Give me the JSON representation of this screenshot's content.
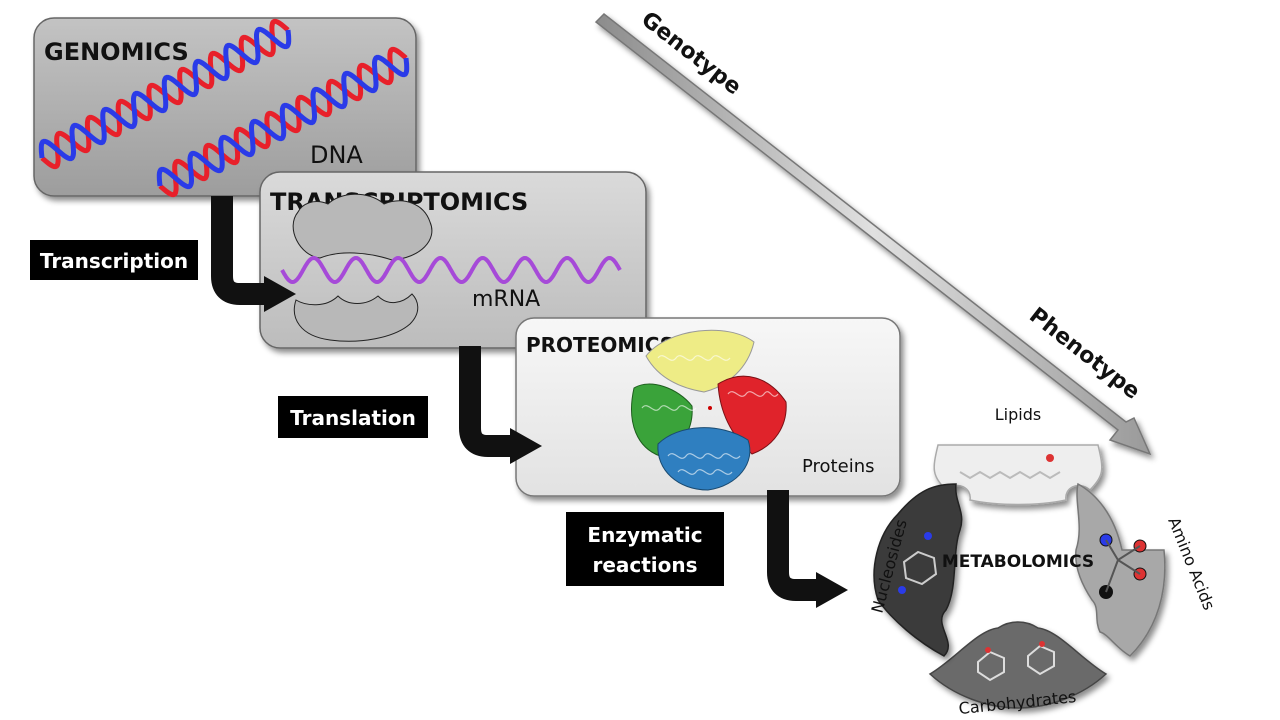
{
  "stages": {
    "genomics": {
      "title": "GENOMICS",
      "label": "DNA"
    },
    "transcriptomics": {
      "title": "TRANSCRIPTOMICS",
      "label": "mRNA"
    },
    "proteomics": {
      "title": "PROTEOMICS",
      "label": "Proteins"
    },
    "metabolomics": {
      "title": "METABOLOMICS"
    }
  },
  "processes": {
    "transcription": "Transcription",
    "translation": "Translation",
    "enzymatic_line1": "Enzymatic",
    "enzymatic_line2": "reactions"
  },
  "axis": {
    "genotype": "Genotype",
    "phenotype": "Phenotype"
  },
  "metabolite_classes": {
    "lipids": "Lipids",
    "amino_acids": "Amino Acids",
    "carbohydrates": "Carbohydrates",
    "nucleosides": "Nucleosides"
  },
  "colors": {
    "dna_strand_a": "#e8202a",
    "dna_strand_b": "#2a3be8",
    "mrna": "#a64ad8",
    "protein_yellow": "#eeec86",
    "protein_red": "#e0232b",
    "protein_green": "#3aa33a",
    "protein_blue": "#2f7fc0",
    "piece_dark": "#3a3a3a",
    "piece_mid": "#6a6a6a",
    "piece_light": "#a8a8a8",
    "piece_white": "#eeeeee"
  }
}
